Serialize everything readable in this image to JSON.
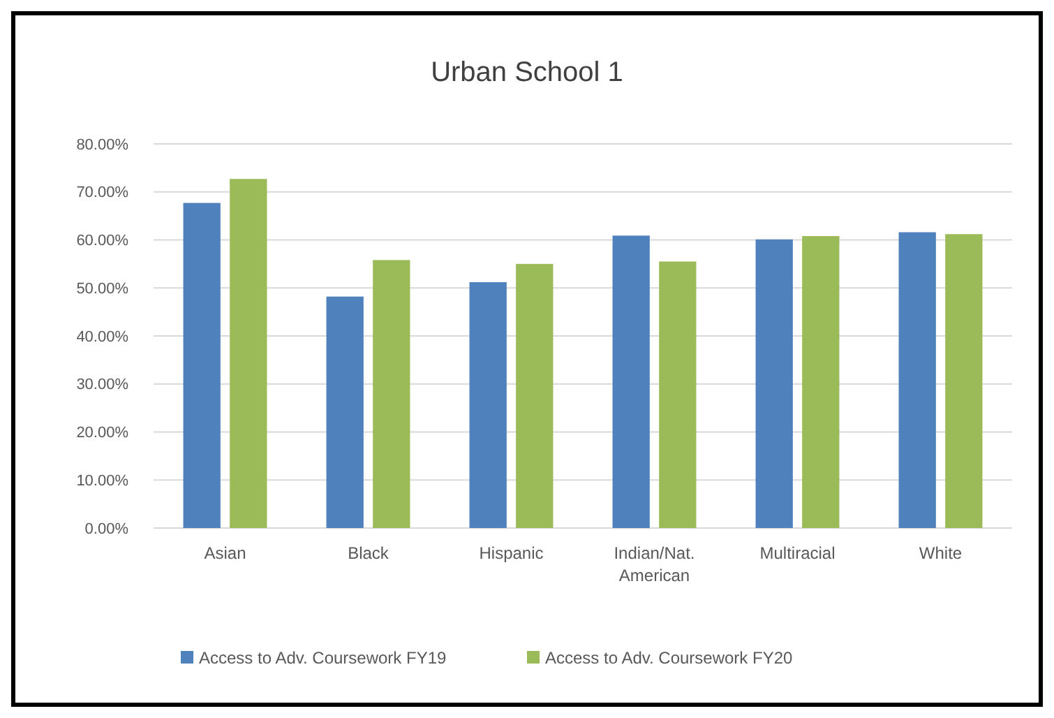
{
  "chart_data": {
    "type": "bar",
    "title": "Urban School 1",
    "categories": [
      "Asian",
      "Black",
      "Hispanic",
      "Indian/Nat. American",
      "Multiracial",
      "White"
    ],
    "series": [
      {
        "name": "Access to Adv. Coursework FY19",
        "color": "#4f81bd",
        "values": [
          67.7,
          48.2,
          51.2,
          60.9,
          60.1,
          61.6
        ]
      },
      {
        "name": "Access to Adv. Coursework FY20",
        "color": "#9bbb59",
        "values": [
          72.7,
          55.8,
          55.0,
          55.5,
          60.8,
          61.2
        ]
      }
    ],
    "ylim": [
      0,
      80
    ],
    "yticks": [
      {
        "value": 0,
        "label": "0.00%"
      },
      {
        "value": 10,
        "label": "10.00%"
      },
      {
        "value": 20,
        "label": "20.00%"
      },
      {
        "value": 30,
        "label": "30.00%"
      },
      {
        "value": 40,
        "label": "40.00%"
      },
      {
        "value": 50,
        "label": "50.00%"
      },
      {
        "value": 60,
        "label": "60.00%"
      },
      {
        "value": 70,
        "label": "70.00%"
      },
      {
        "value": 80,
        "label": "80.00%"
      }
    ],
    "grid": "y",
    "legend": "bottom"
  }
}
